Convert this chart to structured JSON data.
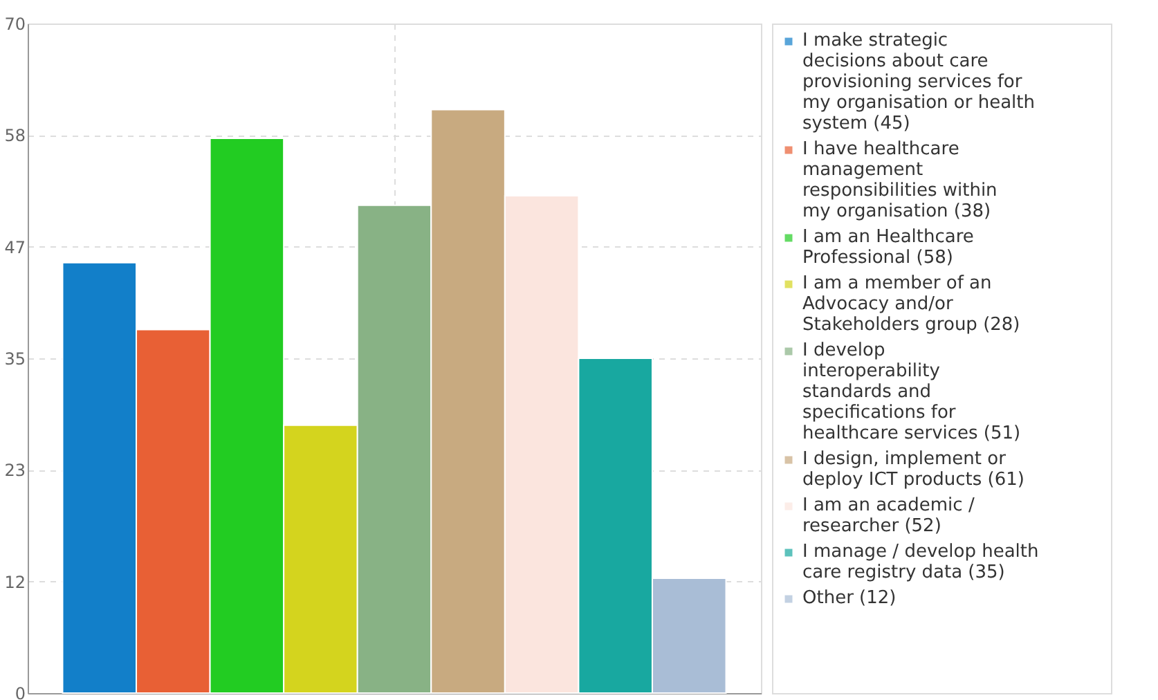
{
  "chart_data": {
    "type": "bar",
    "categories": [
      null
    ],
    "series": [
      {
        "name": "I make strategic decisions about care provisioning services for my organisation or health system (45)",
        "color": "#127fc9",
        "values": [
          45
        ]
      },
      {
        "name": "I have healthcare management responsibilities within my organisation (38)",
        "color": "#e86035",
        "values": [
          38
        ]
      },
      {
        "name": "I am an Healthcare Professional (58)",
        "color": "#22cc22",
        "values": [
          58
        ]
      },
      {
        "name": "I am a member of an Advocacy and/or Stakeholders group (28)",
        "color": "#d4d41e",
        "values": [
          28
        ]
      },
      {
        "name": "I develop interoperability standards and specifications for healthcare services (51)",
        "color": "#88b285",
        "values": [
          51
        ]
      },
      {
        "name": "I design, implement or deploy ICT products (61)",
        "color": "#c8aa80",
        "values": [
          61
        ]
      },
      {
        "name": "I am an academic / researcher (52)",
        "color": "#fbe5de",
        "values": [
          52
        ]
      },
      {
        "name": "I manage / develop health care registry data (35)",
        "color": "#18a8a0",
        "values": [
          35
        ]
      },
      {
        "name": "Other (12)",
        "color": "#a9bdd6",
        "values": [
          12
        ]
      }
    ],
    "ylim": [
      0,
      70
    ],
    "yticks": [
      0,
      {
        "value": 11.67,
        "label": "12"
      },
      {
        "value": 23.33,
        "label": "23"
      },
      35,
      {
        "value": 46.67,
        "label": "47"
      },
      {
        "value": 58.33,
        "label": "58"
      },
      70
    ],
    "grid": true,
    "legend": "top right"
  }
}
